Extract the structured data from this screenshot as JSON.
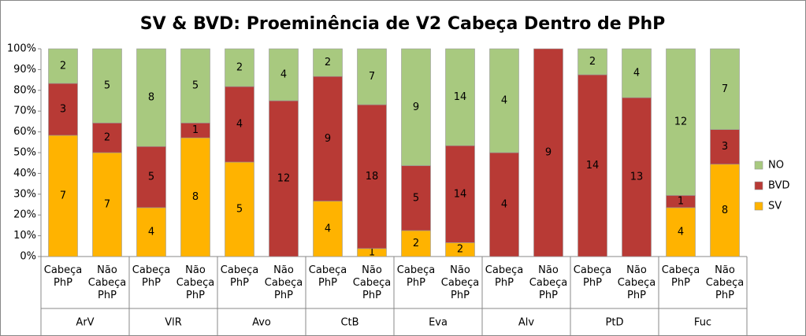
{
  "chart_data": {
    "type": "stacked_percent_bar",
    "title": "SV & BVD: Proeminência de V2 Cabeça Dentro de PhP",
    "categories": [
      "Cabeça PhP",
      "Não Cabeça PhP",
      "Cabeça PhP",
      "Não Cabeça PhP",
      "Cabeça PhP",
      "Não Cabeça PhP",
      "Cabeça PhP",
      "Não Cabeça PhP",
      "Cabeça PhP",
      "Não Cabeça PhP",
      "Cabeça PhP",
      "Não Cabeça PhP",
      "Cabeça PhP",
      "Não Cabeça PhP",
      "Cabeça PhP",
      "Não Cabeça PhP"
    ],
    "groups": [
      "ArV",
      "VlR",
      "Avo",
      "CtB",
      "Eva",
      "Alv",
      "PtD",
      "Fuc"
    ],
    "series": [
      {
        "name": "SV",
        "color": "#ffb300",
        "values": [
          7,
          7,
          4,
          8,
          5,
          0,
          4,
          1,
          2,
          2,
          0,
          0,
          0,
          0,
          4,
          8
        ]
      },
      {
        "name": "BVD",
        "color": "#b83a35",
        "values": [
          3,
          2,
          5,
          1,
          4,
          12,
          9,
          18,
          5,
          14,
          4,
          9,
          14,
          13,
          1,
          3
        ]
      },
      {
        "name": "NO",
        "color": "#a8c97f",
        "values": [
          2,
          5,
          8,
          5,
          2,
          4,
          2,
          7,
          9,
          14,
          4,
          0,
          2,
          4,
          12,
          7
        ]
      }
    ],
    "ylim": [
      0,
      100
    ],
    "yticks": [
      {
        "value": 0,
        "label": "0%"
      },
      {
        "value": 10,
        "label": "10%"
      },
      {
        "value": 20,
        "label": "20%"
      },
      {
        "value": 30,
        "label": "30%"
      },
      {
        "value": 40,
        "label": "40%"
      },
      {
        "value": 50,
        "label": "50%"
      },
      {
        "value": 60,
        "label": "60%"
      },
      {
        "value": 70,
        "label": "70%"
      },
      {
        "value": 80,
        "label": "80%"
      },
      {
        "value": 90,
        "label": "90%"
      },
      {
        "value": 100,
        "label": "100%"
      }
    ],
    "legend": "right"
  }
}
